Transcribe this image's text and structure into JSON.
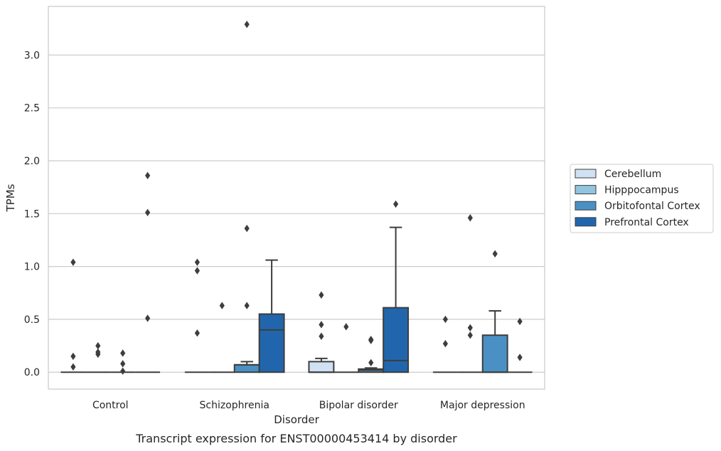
{
  "caption": "Transcript expression for ENST00000453414 by disorder",
  "chart_data": {
    "type": "box",
    "title": "",
    "xlabel": "Disorder",
    "ylabel": "TPMs",
    "ylim": [
      -0.16,
      3.46
    ],
    "yticks": [
      0.0,
      0.5,
      1.0,
      1.5,
      2.0,
      2.5,
      3.0
    ],
    "ytick_labels": [
      "0.0",
      "0.5",
      "1.0",
      "1.5",
      "2.0",
      "2.5",
      "3.0"
    ],
    "grid": "horizontal",
    "legend_position": "right",
    "categories": [
      "Control",
      "Schizophrenia",
      "Bipolar disorder",
      "Major depression"
    ],
    "series": [
      {
        "name": "Cerebellum",
        "color": "#cfe1f2",
        "boxes": [
          {
            "q1": 0.0,
            "median": 0.0,
            "q3": 0.0,
            "whisker_low": 0.0,
            "whisker_high": 0.0,
            "outliers": [
              0.05,
              0.15,
              1.04
            ]
          },
          {
            "q1": 0.0,
            "median": 0.0,
            "q3": 0.0,
            "whisker_low": 0.0,
            "whisker_high": 0.0,
            "outliers": [
              0.37,
              0.96,
              1.04
            ]
          },
          {
            "q1": 0.0,
            "median": 0.0,
            "q3": 0.1,
            "whisker_low": 0.0,
            "whisker_high": 0.13,
            "outliers": [
              0.34,
              0.45,
              0.73
            ]
          },
          {
            "q1": 0.0,
            "median": 0.0,
            "q3": 0.0,
            "whisker_low": 0.0,
            "whisker_high": 0.0,
            "outliers": [
              0.27,
              0.5
            ]
          }
        ]
      },
      {
        "name": "Hipppocampus",
        "color": "#93c4de",
        "boxes": [
          {
            "q1": 0.0,
            "median": 0.0,
            "q3": 0.0,
            "whisker_low": 0.0,
            "whisker_high": 0.0,
            "outliers": [
              0.17,
              0.19,
              0.25
            ]
          },
          {
            "q1": 0.0,
            "median": 0.0,
            "q3": 0.0,
            "whisker_low": 0.0,
            "whisker_high": 0.0,
            "outliers": [
              0.63
            ]
          },
          {
            "q1": 0.0,
            "median": 0.0,
            "q3": 0.0,
            "whisker_low": 0.0,
            "whisker_high": 0.0,
            "outliers": [
              0.43
            ]
          },
          {
            "q1": 0.0,
            "median": 0.0,
            "q3": 0.0,
            "whisker_low": 0.0,
            "whisker_high": 0.0,
            "outliers": [
              0.35,
              0.42,
              1.46
            ]
          }
        ]
      },
      {
        "name": "Orbitofontal Cortex",
        "color": "#4a90c4",
        "boxes": [
          {
            "q1": 0.0,
            "median": 0.0,
            "q3": 0.0,
            "whisker_low": 0.0,
            "whisker_high": 0.0,
            "outliers": [
              0.01,
              0.08,
              0.18
            ]
          },
          {
            "q1": 0.0,
            "median": 0.07,
            "q3": 0.07,
            "whisker_low": 0.0,
            "whisker_high": 0.1,
            "outliers": [
              0.63,
              1.36,
              3.29
            ]
          },
          {
            "q1": 0.0,
            "median": 0.02,
            "q3": 0.03,
            "whisker_low": 0.0,
            "whisker_high": 0.04,
            "outliers": [
              0.09,
              0.3,
              0.31
            ]
          },
          {
            "q1": 0.0,
            "median": 0.0,
            "q3": 0.35,
            "whisker_low": 0.0,
            "whisker_high": 0.58,
            "outliers": [
              1.12
            ]
          }
        ]
      },
      {
        "name": "Prefrontal Cortex",
        "color": "#2166ac",
        "boxes": [
          {
            "q1": 0.0,
            "median": 0.0,
            "q3": 0.0,
            "whisker_low": 0.0,
            "whisker_high": 0.0,
            "outliers": [
              0.51,
              1.51,
              1.86
            ]
          },
          {
            "q1": 0.0,
            "median": 0.4,
            "q3": 0.55,
            "whisker_low": 0.0,
            "whisker_high": 1.06,
            "outliers": []
          },
          {
            "q1": 0.0,
            "median": 0.11,
            "q3": 0.61,
            "whisker_low": 0.0,
            "whisker_high": 1.37,
            "outliers": [
              1.59
            ]
          },
          {
            "q1": 0.0,
            "median": 0.0,
            "q3": 0.0,
            "whisker_low": 0.0,
            "whisker_high": 0.0,
            "outliers": [
              0.14,
              0.48
            ]
          }
        ]
      }
    ]
  }
}
